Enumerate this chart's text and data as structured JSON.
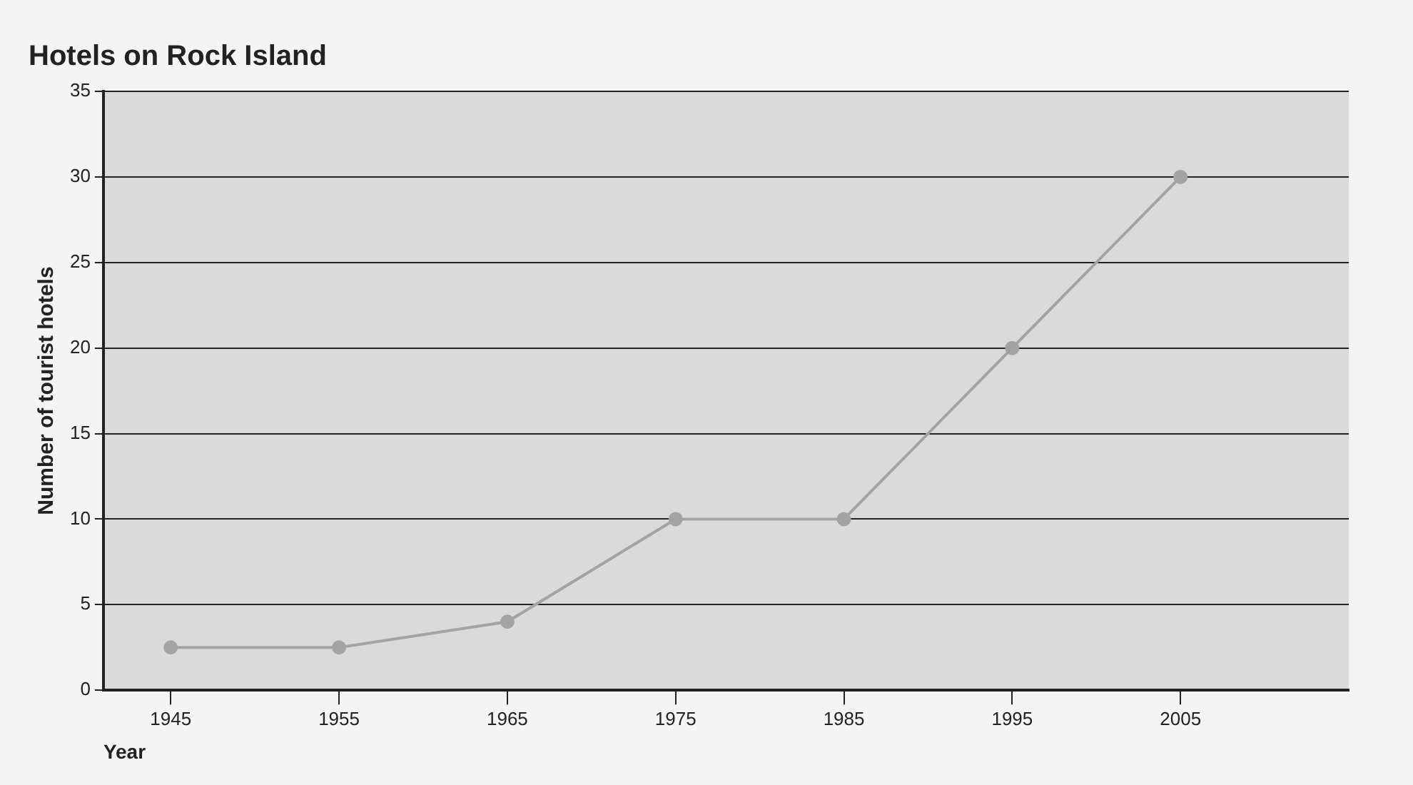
{
  "chart_data": {
    "type": "line",
    "title": "Hotels on Rock Island",
    "xlabel": "Year",
    "ylabel": "Number of tourist hotels",
    "x": [
      1945,
      1955,
      1965,
      1975,
      1985,
      1995,
      2005
    ],
    "values": [
      2.5,
      2.5,
      4,
      10,
      10,
      20,
      30
    ],
    "color": "#a3a3a3",
    "xlim": [
      1941,
      2015
    ],
    "xticks": [
      1945,
      1955,
      1965,
      1975,
      1985,
      1995,
      2005
    ],
    "ylim": [
      0,
      35
    ],
    "yticks": [
      0,
      5,
      10,
      15,
      20,
      25,
      30,
      35
    ],
    "grid": "y",
    "legend": false,
    "marker": "circle",
    "line_style": "solid"
  }
}
